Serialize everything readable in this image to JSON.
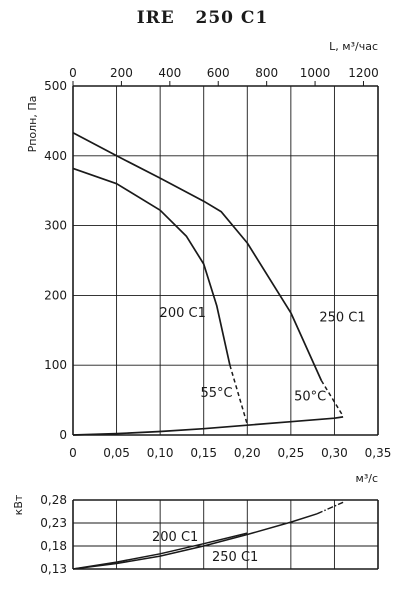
{
  "title": "IRE   250 C1",
  "chart_data": [
    {
      "type": "line",
      "title": "IRE   250 C1",
      "xlabel": "м³/с",
      "ylabel": "Рполн, Па",
      "top_xlabel": "L, м³/час",
      "xlim": [
        0,
        0.35
      ],
      "ylim": [
        0,
        500
      ],
      "x_ticks": [
        "0",
        "0,05",
        "0,10",
        "0,15",
        "0,20",
        "0,25",
        "0,30",
        "0,35"
      ],
      "y_ticks": [
        "0",
        "100",
        "200",
        "300",
        "400",
        "500"
      ],
      "top_ticks": [
        "0",
        "200",
        "400",
        "600",
        "800",
        "1000",
        "1200"
      ],
      "grid": true,
      "series": [
        {
          "name": "200 C1",
          "label_position": "left",
          "values": [
            [
              0,
              382
            ],
            [
              0.05,
              360
            ],
            [
              0.1,
              322
            ],
            [
              0.13,
              285
            ],
            [
              0.15,
              245
            ],
            [
              0.165,
              185
            ],
            [
              0.18,
              100
            ]
          ],
          "extension_dashed": [
            [
              0.18,
              100
            ],
            [
              0.2,
              15
            ]
          ],
          "temperature_label": "55°C"
        },
        {
          "name": "250 C1",
          "label_position": "right",
          "values": [
            [
              0,
              433
            ],
            [
              0.05,
              400
            ],
            [
              0.1,
              368
            ],
            [
              0.15,
              335
            ],
            [
              0.17,
              320
            ],
            [
              0.2,
              275
            ],
            [
              0.25,
              175
            ],
            [
              0.285,
              78
            ]
          ],
          "extension_dashed": [
            [
              0.285,
              78
            ],
            [
              0.31,
              27
            ]
          ],
          "temperature_label": "50°C"
        },
        {
          "name": "",
          "values": [
            [
              0,
              0
            ],
            [
              0.05,
              2
            ],
            [
              0.1,
              5
            ],
            [
              0.15,
              9
            ],
            [
              0.2,
              14
            ],
            [
              0.25,
              19
            ],
            [
              0.3,
              24
            ],
            [
              0.31,
              26
            ]
          ]
        }
      ]
    },
    {
      "type": "line",
      "xlabel": "",
      "ylabel": "кВт",
      "xlim": [
        0,
        0.35
      ],
      "ylim": [
        0.13,
        0.28
      ],
      "y_ticks": [
        "0,13",
        "0,18",
        "0,23",
        "0,28"
      ],
      "grid": true,
      "series": [
        {
          "name": "200 C1",
          "values": [
            [
              0,
              0.13
            ],
            [
              0.05,
              0.145
            ],
            [
              0.1,
              0.163
            ],
            [
              0.15,
              0.185
            ],
            [
              0.2,
              0.208
            ]
          ]
        },
        {
          "name": "250 C1",
          "values": [
            [
              0,
              0.13
            ],
            [
              0.05,
              0.142
            ],
            [
              0.1,
              0.158
            ],
            [
              0.15,
              0.18
            ],
            [
              0.2,
              0.205
            ],
            [
              0.25,
              0.232
            ],
            [
              0.28,
              0.25
            ]
          ],
          "extension_dashed": [
            [
              0.28,
              0.25
            ],
            [
              0.31,
              0.275
            ]
          ]
        }
      ]
    }
  ]
}
